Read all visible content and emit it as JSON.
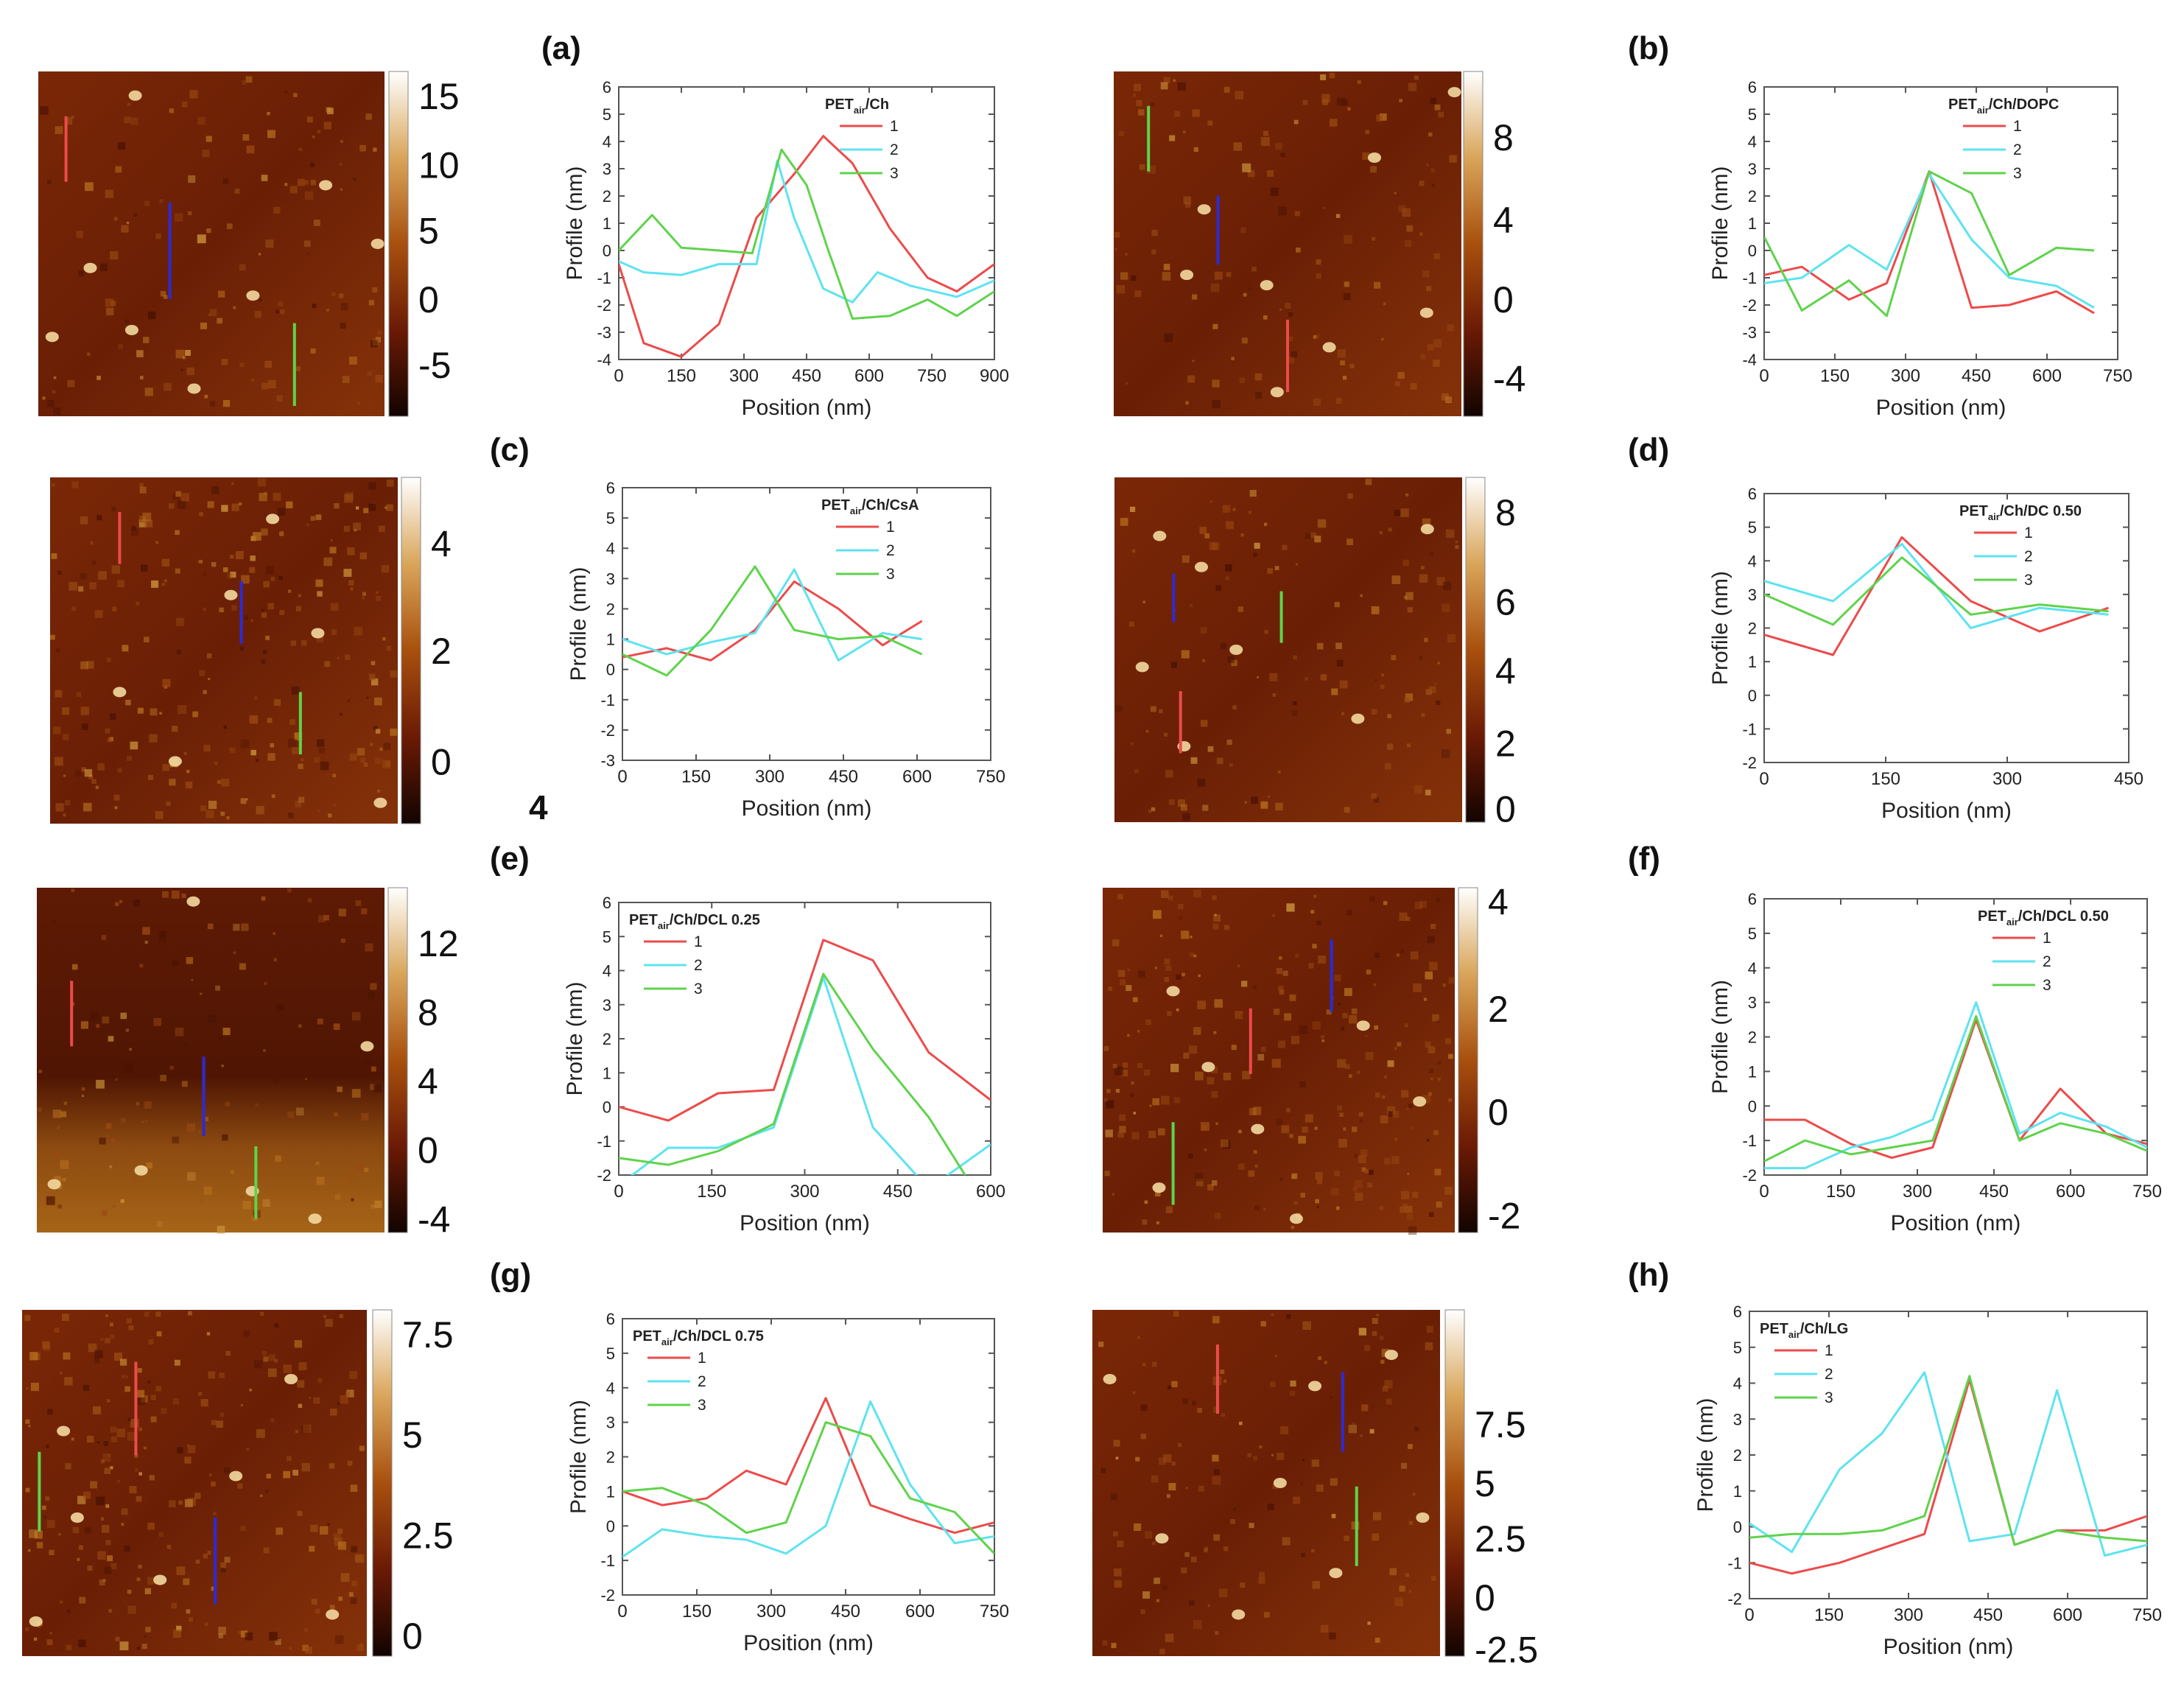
{
  "figure_caption_stray": "4",
  "colors": {
    "red": "#ec4b4b",
    "cyan": "#5ee3f0",
    "green": "#5fd34c",
    "blue": "#2b2bd6",
    "axis": "#555555"
  },
  "afm_images": [
    {
      "id": "a",
      "colorbar_ticks": [
        "15",
        "10",
        "5",
        "0",
        "-5"
      ]
    },
    {
      "id": "b",
      "colorbar_ticks": [
        "8",
        "4",
        "0",
        "-4"
      ]
    },
    {
      "id": "c",
      "colorbar_ticks": [
        "4",
        "2",
        "0"
      ]
    },
    {
      "id": "d",
      "colorbar_ticks": [
        "8",
        "6",
        "4",
        "2",
        "0"
      ]
    },
    {
      "id": "e",
      "colorbar_ticks": [
        "12",
        "8",
        "4",
        "0",
        "-4"
      ]
    },
    {
      "id": "f",
      "colorbar_ticks": [
        "4",
        "2",
        "0",
        "-2"
      ]
    },
    {
      "id": "g",
      "colorbar_ticks": [
        "7.5",
        "5",
        "2.5",
        "0"
      ]
    },
    {
      "id": "h",
      "colorbar_ticks": [
        "7.5",
        "5",
        "2.5",
        "0",
        "-2.5"
      ]
    }
  ],
  "chart_data": [
    {
      "type": "line",
      "panel": "(a)",
      "title": "PET_air/Ch",
      "title_main": "PET",
      "title_sub": "air",
      "title_rest": "/Ch",
      "xlabel": "Position  (nm)",
      "ylabel": "Profile (nm)",
      "xlim": [
        0,
        900
      ],
      "ylim": [
        -4,
        6
      ],
      "xticks": [
        0,
        150,
        300,
        450,
        600,
        750,
        900
      ],
      "yticks": [
        -4,
        -3,
        -2,
        -1,
        0,
        1,
        2,
        3,
        4,
        5,
        6
      ],
      "legend": "top-right",
      "series": [
        {
          "name": "1",
          "x": [
            0,
            60,
            150,
            240,
            330,
            420,
            490,
            560,
            650,
            740,
            810,
            900
          ],
          "y": [
            -0.5,
            -3.4,
            -3.9,
            -2.7,
            1.2,
            2.8,
            4.2,
            3.2,
            0.8,
            -1.0,
            -1.5,
            -0.5
          ]
        },
        {
          "name": "2",
          "x": [
            0,
            60,
            150,
            240,
            330,
            380,
            420,
            490,
            560,
            620,
            700,
            810,
            900
          ],
          "y": [
            -0.4,
            -0.8,
            -0.9,
            -0.5,
            -0.5,
            3.3,
            1.2,
            -1.4,
            -1.9,
            -0.8,
            -1.3,
            -1.7,
            -1.1
          ]
        },
        {
          "name": "3",
          "x": [
            0,
            80,
            150,
            240,
            320,
            390,
            450,
            500,
            560,
            650,
            740,
            810,
            900
          ],
          "y": [
            0.0,
            1.3,
            0.1,
            0.0,
            -0.1,
            3.7,
            2.4,
            0.1,
            -2.5,
            -2.4,
            -1.8,
            -2.4,
            -1.5
          ]
        }
      ]
    },
    {
      "type": "line",
      "panel": "(b)",
      "title": "PET_air/Ch/DOPC",
      "title_main": "PET",
      "title_sub": "air",
      "title_rest": "/Ch/DOPC",
      "xlabel": "Position  (nm)",
      "ylabel": "Profile (nm)",
      "xlim": [
        0,
        750
      ],
      "ylim": [
        -4,
        6
      ],
      "xticks": [
        0,
        150,
        300,
        450,
        600,
        750
      ],
      "yticks": [
        -4,
        -3,
        -2,
        -1,
        0,
        1,
        2,
        3,
        4,
        5,
        6
      ],
      "legend": "top-right",
      "series": [
        {
          "name": "1",
          "x": [
            0,
            80,
            180,
            260,
            350,
            440,
            520,
            620,
            700
          ],
          "y": [
            -0.9,
            -0.6,
            -1.8,
            -1.2,
            2.9,
            -2.1,
            -2.0,
            -1.5,
            -2.3
          ]
        },
        {
          "name": "2",
          "x": [
            0,
            80,
            180,
            260,
            350,
            440,
            520,
            620,
            700
          ],
          "y": [
            -1.2,
            -1.0,
            0.2,
            -0.7,
            2.8,
            0.4,
            -1.0,
            -1.3,
            -2.1
          ]
        },
        {
          "name": "3",
          "x": [
            0,
            80,
            180,
            260,
            350,
            440,
            520,
            620,
            700
          ],
          "y": [
            0.5,
            -2.2,
            -1.1,
            -2.4,
            2.9,
            2.1,
            -0.9,
            0.1,
            0.0
          ]
        }
      ]
    },
    {
      "type": "line",
      "panel": "(c)",
      "title": "PET_air/Ch/CsA",
      "title_main": "PET",
      "title_sub": "air",
      "title_rest": "/Ch/CsA",
      "xlabel": "Position  (nm)",
      "ylabel": "Profile (nm)",
      "xlim": [
        0,
        750
      ],
      "ylim": [
        -3,
        6
      ],
      "xticks": [
        0,
        150,
        300,
        450,
        600,
        750
      ],
      "yticks": [
        -3,
        -2,
        -1,
        0,
        1,
        2,
        3,
        4,
        5,
        6
      ],
      "legend": "top-right",
      "series": [
        {
          "name": "1",
          "x": [
            0,
            90,
            180,
            270,
            350,
            440,
            530,
            610
          ],
          "y": [
            0.4,
            0.7,
            0.3,
            1.3,
            2.9,
            2.0,
            0.8,
            1.6
          ]
        },
        {
          "name": "2",
          "x": [
            0,
            90,
            180,
            270,
            350,
            440,
            530,
            610
          ],
          "y": [
            1.0,
            0.5,
            0.9,
            1.2,
            3.3,
            0.3,
            1.2,
            1.0
          ]
        },
        {
          "name": "3",
          "x": [
            0,
            90,
            180,
            270,
            350,
            440,
            530,
            610
          ],
          "y": [
            0.5,
            -0.2,
            1.3,
            3.4,
            1.3,
            1.0,
            1.1,
            0.5
          ]
        }
      ]
    },
    {
      "type": "line",
      "panel": "(d)",
      "title": "PET_air/Ch/DC 0.50",
      "title_main": "PET",
      "title_sub": "air",
      "title_rest": "/Ch/DC 0.50",
      "xlabel": "Position  (nm)",
      "ylabel": "Profile (nm)",
      "xlim": [
        0,
        450
      ],
      "ylim": [
        -2,
        6
      ],
      "xticks": [
        0,
        150,
        300,
        450
      ],
      "yticks": [
        -2,
        -1,
        0,
        1,
        2,
        3,
        4,
        5,
        6
      ],
      "legend": "top-right",
      "series": [
        {
          "name": "1",
          "x": [
            0,
            85,
            170,
            255,
            340,
            425
          ],
          "y": [
            1.8,
            1.2,
            4.7,
            2.8,
            1.9,
            2.6
          ]
        },
        {
          "name": "2",
          "x": [
            0,
            85,
            170,
            255,
            340,
            425
          ],
          "y": [
            3.4,
            2.8,
            4.5,
            2.0,
            2.6,
            2.4
          ]
        },
        {
          "name": "3",
          "x": [
            0,
            85,
            170,
            255,
            340,
            425
          ],
          "y": [
            3.0,
            2.1,
            4.1,
            2.4,
            2.7,
            2.5
          ]
        }
      ]
    },
    {
      "type": "line",
      "panel": "(e)",
      "title": "PET_air/Ch/DCL 0.25",
      "title_main": "PET",
      "title_sub": "air",
      "title_rest": "/Ch/DCL 0.25",
      "xlabel": "Position  (nm)",
      "ylabel": "Profile (nm)",
      "xlim": [
        0,
        600
      ],
      "ylim": [
        -2,
        6
      ],
      "xticks": [
        0,
        150,
        300,
        450,
        600
      ],
      "yticks": [
        -2,
        -1,
        0,
        1,
        2,
        3,
        4,
        5,
        6
      ],
      "legend": "top-left",
      "series": [
        {
          "name": "1",
          "x": [
            0,
            80,
            160,
            250,
            330,
            410,
            500,
            600
          ],
          "y": [
            0.0,
            -0.4,
            0.4,
            0.5,
            4.9,
            4.3,
            1.6,
            0.2
          ]
        },
        {
          "name": "2",
          "x": [
            0,
            80,
            160,
            250,
            330,
            410,
            500,
            600
          ],
          "y": [
            -2.3,
            -1.2,
            -1.2,
            -0.6,
            3.8,
            -0.6,
            -2.4,
            -1.1
          ]
        },
        {
          "name": "3",
          "x": [
            0,
            80,
            160,
            250,
            330,
            410,
            500,
            600
          ],
          "y": [
            -1.5,
            -1.7,
            -1.3,
            -0.5,
            3.9,
            1.7,
            -0.3,
            -3.2
          ]
        }
      ]
    },
    {
      "type": "line",
      "panel": "(f)",
      "title": "PET_air/Ch/DCL 0.50",
      "title_main": "PET",
      "title_sub": "air",
      "title_rest": "/Ch/DCL 0.50",
      "xlabel": "Position  (nm)",
      "ylabel": "Profile (nm)",
      "xlim": [
        0,
        750
      ],
      "ylim": [
        -2,
        6
      ],
      "xticks": [
        0,
        150,
        300,
        450,
        600,
        750
      ],
      "yticks": [
        -2,
        -1,
        0,
        1,
        2,
        3,
        4,
        5,
        6
      ],
      "legend": "top-right",
      "series": [
        {
          "name": "1",
          "x": [
            0,
            80,
            170,
            250,
            330,
            415,
            500,
            580,
            670,
            750
          ],
          "y": [
            -0.4,
            -0.4,
            -1.1,
            -1.5,
            -1.2,
            2.5,
            -1.0,
            0.5,
            -0.8,
            -1.1
          ]
        },
        {
          "name": "2",
          "x": [
            0,
            80,
            170,
            250,
            330,
            415,
            500,
            580,
            670,
            750
          ],
          "y": [
            -1.8,
            -1.8,
            -1.2,
            -0.9,
            -0.4,
            3.0,
            -0.8,
            -0.2,
            -0.6,
            -1.2
          ]
        },
        {
          "name": "3",
          "x": [
            0,
            80,
            170,
            250,
            330,
            415,
            500,
            580,
            670,
            750
          ],
          "y": [
            -1.6,
            -1.0,
            -1.4,
            -1.2,
            -1.0,
            2.6,
            -1.0,
            -0.5,
            -0.8,
            -1.3
          ]
        }
      ]
    },
    {
      "type": "line",
      "panel": "(g)",
      "title": "PET_air/Ch/DCL 0.75",
      "title_main": "PET",
      "title_sub": "air",
      "title_rest": "/Ch/DCL 0.75",
      "xlabel": "Position  (nm)",
      "ylabel": "Profile (nm)",
      "xlim": [
        0,
        750
      ],
      "ylim": [
        -2,
        6
      ],
      "xticks": [
        0,
        150,
        300,
        450,
        600,
        750
      ],
      "yticks": [
        -2,
        -1,
        0,
        1,
        2,
        3,
        4,
        5,
        6
      ],
      "legend": "top-left",
      "series": [
        {
          "name": "1",
          "x": [
            0,
            80,
            170,
            250,
            330,
            410,
            500,
            580,
            670,
            750
          ],
          "y": [
            1.0,
            0.6,
            0.8,
            1.6,
            1.2,
            3.7,
            0.6,
            0.2,
            -0.2,
            0.1
          ]
        },
        {
          "name": "2",
          "x": [
            0,
            80,
            170,
            250,
            330,
            410,
            500,
            580,
            670,
            750
          ],
          "y": [
            -0.9,
            -0.1,
            -0.3,
            -0.4,
            -0.8,
            0.0,
            3.6,
            1.2,
            -0.5,
            -0.3
          ]
        },
        {
          "name": "3",
          "x": [
            0,
            80,
            170,
            250,
            330,
            410,
            500,
            580,
            670,
            750
          ],
          "y": [
            1.0,
            1.1,
            0.6,
            -0.2,
            0.1,
            3.0,
            2.6,
            0.8,
            0.4,
            -0.8
          ]
        }
      ]
    },
    {
      "type": "line",
      "panel": "(h)",
      "title": "PET_air/Ch/LG",
      "title_main": "PET",
      "title_sub": "air",
      "title_rest": "/Ch/LG",
      "xlabel": "Position  (nm)",
      "ylabel": "Profile (nm)",
      "xlim": [
        0,
        750
      ],
      "ylim": [
        -2,
        6
      ],
      "xticks": [
        0,
        150,
        300,
        450,
        600,
        750
      ],
      "yticks": [
        -2,
        -1,
        0,
        1,
        2,
        3,
        4,
        5,
        6
      ],
      "legend": "top-left",
      "series": [
        {
          "name": "1",
          "x": [
            0,
            80,
            170,
            250,
            330,
            415,
            500,
            580,
            670,
            750
          ],
          "y": [
            -1.0,
            -1.3,
            -1.0,
            -0.6,
            -0.2,
            4.1,
            -0.5,
            -0.1,
            -0.1,
            0.3
          ]
        },
        {
          "name": "2",
          "x": [
            0,
            80,
            170,
            250,
            330,
            415,
            500,
            580,
            670,
            750
          ],
          "y": [
            0.1,
            -0.7,
            1.6,
            2.6,
            4.3,
            -0.4,
            -0.2,
            3.8,
            -0.8,
            -0.5
          ]
        },
        {
          "name": "3",
          "x": [
            0,
            80,
            170,
            250,
            330,
            415,
            500,
            580,
            670,
            750
          ],
          "y": [
            -0.3,
            -0.2,
            -0.2,
            -0.1,
            0.3,
            4.2,
            -0.5,
            -0.1,
            -0.3,
            -0.4
          ]
        }
      ]
    }
  ]
}
